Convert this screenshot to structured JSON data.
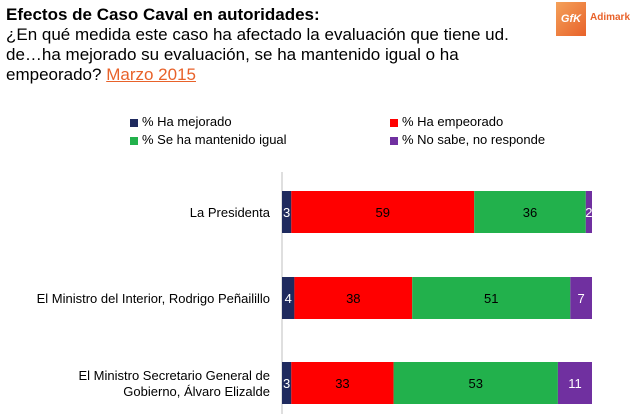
{
  "header": {
    "title": "Efectos de Caso Caval en autoridades:",
    "question": "¿En qué medida este caso ha afectado la evaluación que tiene ud. de…ha mejorado su evaluación, se ha mantenido igual o ha empeorado?",
    "date": "Marzo 2015"
  },
  "logo": {
    "mark": "GfK",
    "brand": "Adimark"
  },
  "chart_data": {
    "type": "bar",
    "orientation": "horizontal",
    "stacked": true,
    "categories": [
      [
        "La Presidenta"
      ],
      [
        "El Ministro del Interior, Rodrigo Peñailillo"
      ],
      [
        "El Ministro Secretario General de",
        "Gobierno, Álvaro Elizalde"
      ]
    ],
    "series": [
      {
        "name": "% Ha mejorado",
        "color": "#1f2a5e",
        "values": [
          3,
          4,
          3
        ]
      },
      {
        "name": "% Ha empeorado",
        "color": "#ff0000",
        "values": [
          59,
          38,
          33
        ]
      },
      {
        "name": "% Se ha mantenido igual",
        "color": "#22b14c",
        "values": [
          36,
          51,
          53
        ]
      },
      {
        "name": "% No sabe, no responde",
        "color": "#7030a0",
        "values": [
          2,
          7,
          11
        ]
      }
    ],
    "xlim": [
      0,
      100
    ],
    "legend": "top"
  }
}
